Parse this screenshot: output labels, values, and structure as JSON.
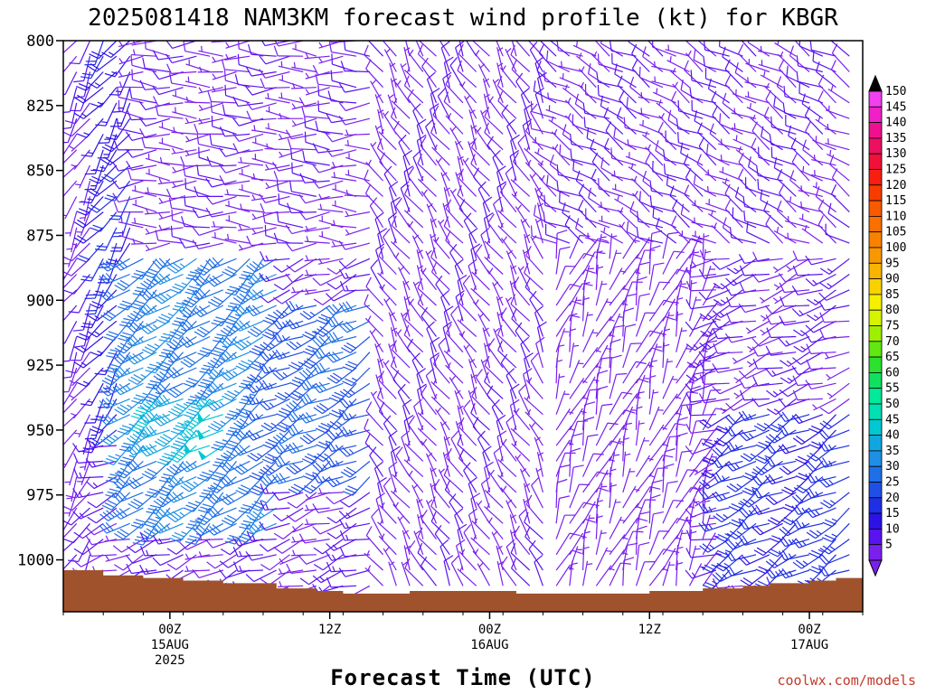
{
  "chart_data": {
    "type": "wind_barb_profile",
    "title": "2025081418 NAM3KM forecast wind profile (kt) for KBGR",
    "xlabel": "Forecast Time (UTC)",
    "units": "kt",
    "y_axis": {
      "quantity": "pressure (hPa)",
      "range": [
        1020,
        800
      ],
      "inverted": true,
      "ticks": [
        {
          "value": 800,
          "label": "800"
        },
        {
          "value": 825,
          "label": "825"
        },
        {
          "value": 850,
          "label": "850"
        },
        {
          "value": 875,
          "label": "875"
        },
        {
          "value": 900,
          "label": "900"
        },
        {
          "value": 925,
          "label": "925"
        },
        {
          "value": 950,
          "label": "950"
        },
        {
          "value": 975,
          "label": "975"
        },
        {
          "value": 1000,
          "label": "1000"
        }
      ]
    },
    "x_axis": {
      "quantity": "forecast hour (2025-08-14 18Z start)",
      "range": [
        -2,
        58
      ],
      "ticks": [
        {
          "value": 6,
          "lines": [
            "00Z",
            "15AUG",
            "2025"
          ]
        },
        {
          "value": 18,
          "lines": [
            "12Z"
          ]
        },
        {
          "value": 30,
          "lines": [
            "00Z",
            "16AUG"
          ]
        },
        {
          "value": 42,
          "lines": [
            "12Z"
          ]
        },
        {
          "value": 54,
          "lines": [
            "00Z",
            "17AUG"
          ]
        }
      ]
    },
    "surface_pressure": {
      "x": [
        -2,
        1,
        4,
        7,
        10,
        14,
        17,
        19,
        24,
        28,
        32,
        35,
        37,
        42,
        46,
        49,
        51,
        54,
        56,
        58
      ],
      "p": [
        1004,
        1006,
        1007,
        1008,
        1009,
        1011,
        1012,
        1013,
        1012,
        1012,
        1013,
        1013,
        1013,
        1012,
        1011,
        1010,
        1009,
        1008,
        1007,
        1006
      ]
    },
    "colorbar": {
      "levels": [
        5,
        10,
        15,
        20,
        25,
        30,
        35,
        40,
        45,
        50,
        55,
        60,
        65,
        70,
        75,
        80,
        85,
        90,
        95,
        100,
        105,
        110,
        115,
        120,
        125,
        130,
        135,
        140,
        145,
        150
      ],
      "colors": [
        "#7a20ee",
        "#5a12f0",
        "#2d12e6",
        "#1f2fe6",
        "#1f50e6",
        "#1f70e6",
        "#1f8fe6",
        "#12a6e0",
        "#00c8d2",
        "#00e0b4",
        "#00ea9a",
        "#10e060",
        "#2ce030",
        "#60e810",
        "#9ef000",
        "#d6f400",
        "#f6f000",
        "#f8d200",
        "#f8b400",
        "#f89800",
        "#f88200",
        "#f87000",
        "#f85a00",
        "#f83c00",
        "#f81e10",
        "#f0103a",
        "#ec1060",
        "#ee1090",
        "#f020c8",
        "#f040f0"
      ],
      "over_color": "#000000",
      "under_color": "#7a20ee"
    },
    "regions": [
      {
        "x": [
          -1,
          0
        ],
        "p": [
          800,
          1000
        ],
        "speed": 8,
        "dir": 210,
        "note": "left columns, light SW"
      },
      {
        "x": [
          1,
          3
        ],
        "p": [
          800,
          950
        ],
        "speed": 18,
        "dir": 215
      },
      {
        "x": [
          3,
          14
        ],
        "p": [
          880,
          990
        ],
        "speed": 33,
        "dir": 230
      },
      {
        "x": [
          5,
          10
        ],
        "p": [
          935,
          960
        ],
        "speed": 45,
        "dir": 235
      },
      {
        "x": [
          14,
          22
        ],
        "p": [
          900,
          970
        ],
        "speed": 28,
        "dir": 240
      },
      {
        "x": [
          4,
          22
        ],
        "p": [
          800,
          880
        ],
        "speed": 8,
        "dir": 270
      },
      {
        "x": [
          22,
          35
        ],
        "p": [
          800,
          1010
        ],
        "speed": 8,
        "dir": 330
      },
      {
        "x": [
          35,
          46
        ],
        "p": [
          880,
          1010
        ],
        "speed": 7,
        "dir": 20
      },
      {
        "x": [
          35,
          58
        ],
        "p": [
          800,
          880
        ],
        "speed": 9,
        "dir": 300
      },
      {
        "x": [
          48,
          58
        ],
        "p": [
          940,
          1005
        ],
        "speed": 22,
        "dir": 240
      }
    ]
  },
  "credit": "coolwx.com/models"
}
